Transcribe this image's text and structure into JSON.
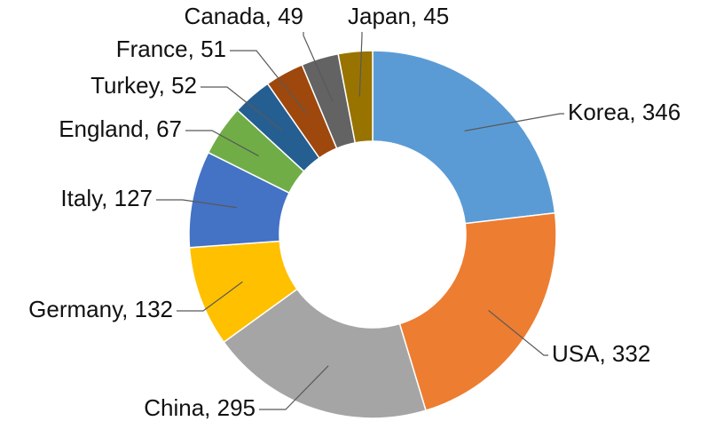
{
  "chart_data": {
    "type": "donut",
    "values": [
      346,
      332,
      295,
      132,
      127,
      67,
      52,
      51,
      49,
      45
    ],
    "value_labels": [
      "Korea, 346",
      "USA, 332",
      "China, 295",
      "Germany, 132",
      "Italy, 127",
      "England, 67",
      "Turkey, 52",
      "France, 51",
      "Canada, 49",
      "Japan, 45"
    ],
    "colors": [
      "#5b9bd5",
      "#ed7d31",
      "#a5a5a5",
      "#ffc000",
      "#4472c4",
      "#70ad47",
      "#255e91",
      "#9e480e",
      "#636363",
      "#997300"
    ]
  }
}
